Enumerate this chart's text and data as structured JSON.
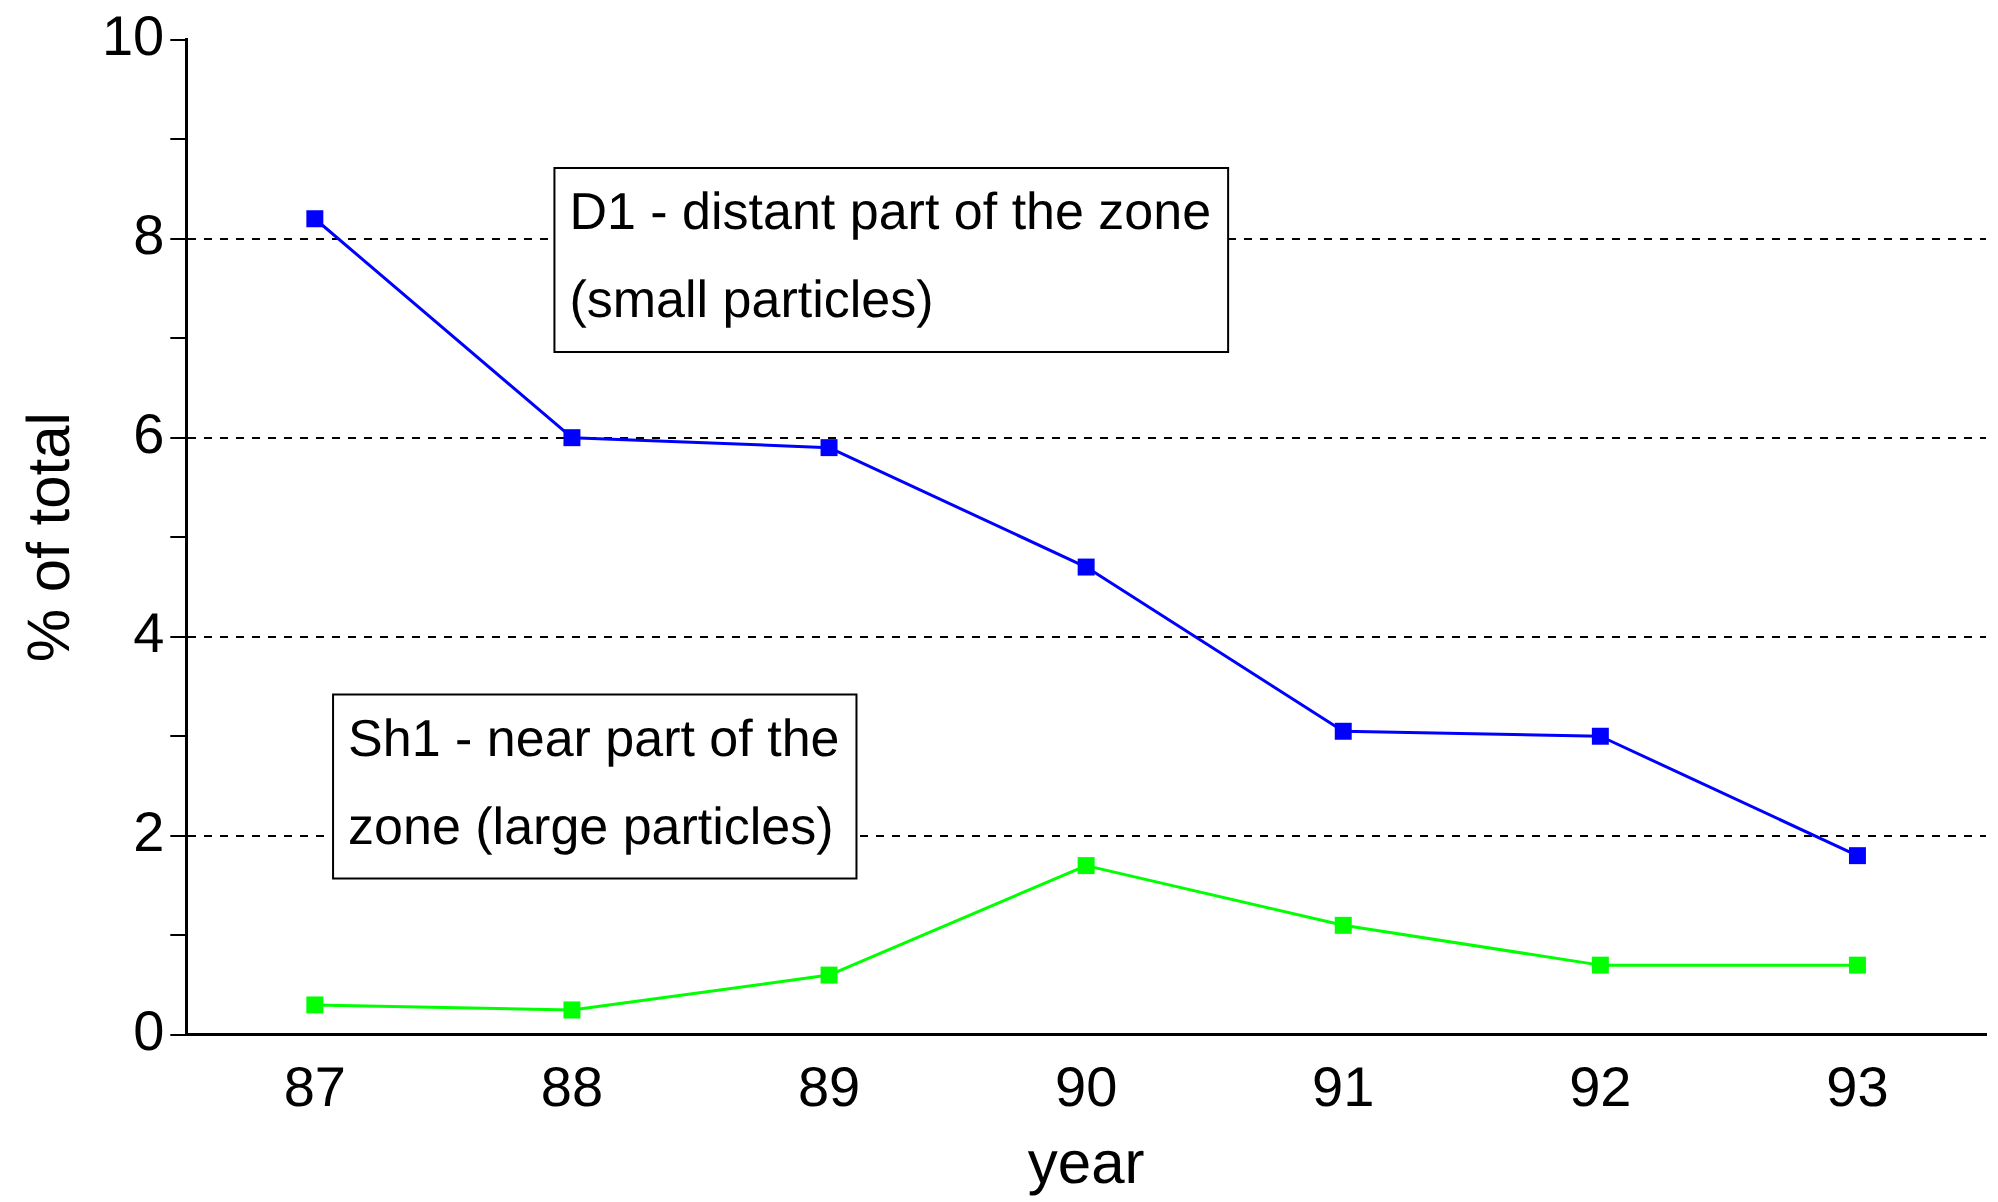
{
  "chart_data": {
    "type": "line",
    "xlabel": "year",
    "ylabel": "% of total",
    "categories": [
      "87",
      "88",
      "89",
      "90",
      "91",
      "92",
      "93"
    ],
    "series": [
      {
        "name": "D1 - distant part of the zone (small particles)",
        "color": "#0000ff",
        "values": [
          8.2,
          6.0,
          5.9,
          4.7,
          3.05,
          3.0,
          1.8
        ]
      },
      {
        "name": "Sh1 - near part of the zone (large particles)",
        "color": "#00ff00",
        "values": [
          0.3,
          0.25,
          0.6,
          1.7,
          1.1,
          0.7,
          0.7
        ]
      }
    ],
    "ylim": [
      0,
      10
    ],
    "yticks": [
      0,
      {
        "value": 1,
        "label": null
      },
      2,
      {
        "value": 3,
        "label": null
      },
      4,
      {
        "value": 5,
        "label": null
      },
      6,
      {
        "value": 7,
        "label": null
      },
      8,
      {
        "value": 9,
        "label": null
      },
      10
    ],
    "grid": "y",
    "legend": false,
    "marker": "square",
    "line_style": "solid"
  }
}
